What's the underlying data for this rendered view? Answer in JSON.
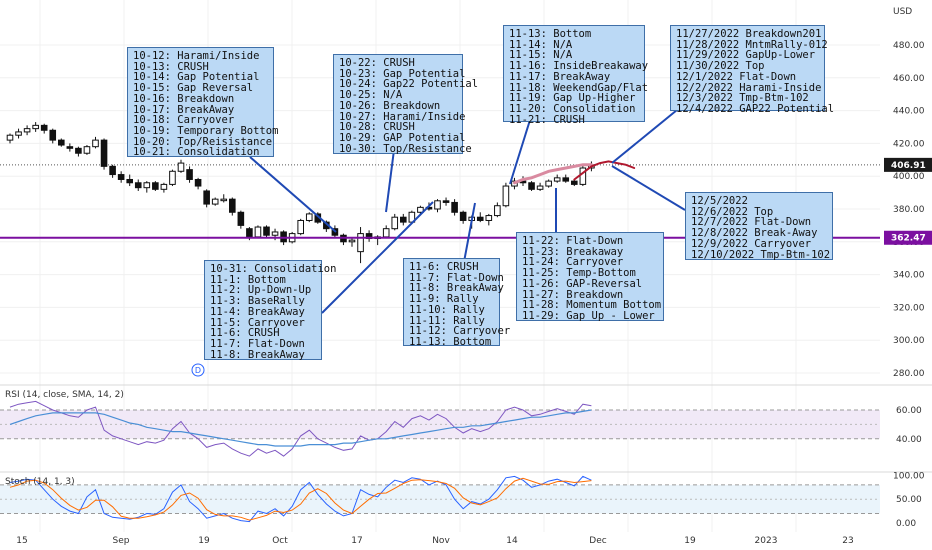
{
  "colors": {
    "candle": "#111111",
    "purple_line": "#7b0fa0",
    "callout_line": "#1f49b4",
    "callout_fill": "#bbd9f5",
    "projection": "#b0182e",
    "projection_fade": "#d98aa0",
    "rsi_line": "#7e57c2",
    "rsi_sma": "#4a8fd6",
    "stoch_k": "#2962ff",
    "stoch_d": "#ff6d00",
    "grid": "#f0f0f0"
  },
  "chart_data": {
    "type": "candlestick",
    "currency_label": "USD",
    "price_axis": {
      "ticks": [
        "480.00",
        "460.00",
        "440.00",
        "420.00",
        "400.00",
        "380.00",
        "360.00",
        "340.00",
        "320.00",
        "300.00",
        "280.00"
      ],
      "range": [
        274,
        508
      ]
    },
    "last_price_tag": "406.91",
    "support_tag": "362.47",
    "support_level": 362.47,
    "last_price": 406.91,
    "x_ticks": [
      "15",
      "Sep",
      "19",
      "Oct",
      "17",
      "Nov",
      "14",
      "Dec",
      "19",
      "2023",
      "23"
    ],
    "event_marker": "D",
    "candles": [
      [
        0,
        422,
        426,
        420,
        425
      ],
      [
        1,
        425,
        429,
        423,
        427
      ],
      [
        2,
        427,
        431,
        425,
        429
      ],
      [
        3,
        429,
        433,
        427,
        431
      ],
      [
        4,
        431,
        432,
        426,
        428
      ],
      [
        5,
        428,
        429,
        420,
        422
      ],
      [
        6,
        422,
        423,
        418,
        419
      ],
      [
        7,
        418,
        420,
        415,
        417
      ],
      [
        8,
        417,
        418,
        412,
        414
      ],
      [
        9,
        414,
        419,
        413,
        418
      ],
      [
        10,
        418,
        424,
        417,
        422
      ],
      [
        11,
        422,
        423,
        404,
        406
      ],
      [
        12,
        406,
        407,
        399,
        401
      ],
      [
        13,
        401,
        403,
        396,
        398
      ],
      [
        14,
        398,
        401,
        394,
        396
      ],
      [
        15,
        396,
        398,
        391,
        393
      ],
      [
        16,
        393,
        397,
        390,
        396
      ],
      [
        17,
        396,
        397,
        391,
        392
      ],
      [
        18,
        392,
        396,
        390,
        395
      ],
      [
        19,
        395,
        404,
        394,
        403
      ],
      [
        20,
        403,
        410,
        402,
        408
      ],
      [
        21,
        404,
        406,
        396,
        398
      ],
      [
        22,
        398,
        399,
        392,
        394
      ],
      [
        23,
        391,
        392,
        381,
        383
      ],
      [
        24,
        383,
        387,
        382,
        386
      ],
      [
        25,
        386,
        389,
        384,
        386
      ],
      [
        26,
        386,
        387,
        376,
        378
      ],
      [
        27,
        378,
        379,
        368,
        370
      ],
      [
        28,
        368,
        369,
        361,
        363
      ],
      [
        29,
        363,
        370,
        362,
        369
      ],
      [
        30,
        369,
        370,
        362,
        364
      ],
      [
        31,
        364,
        368,
        361,
        366
      ],
      [
        32,
        366,
        367,
        358,
        360
      ],
      [
        33,
        360,
        366,
        359,
        365
      ],
      [
        34,
        365,
        374,
        364,
        373
      ],
      [
        35,
        373,
        378,
        372,
        377
      ],
      [
        36,
        377,
        378,
        371,
        372
      ],
      [
        37,
        372,
        373,
        366,
        368
      ],
      [
        38,
        368,
        370,
        362,
        364
      ],
      [
        39,
        364,
        365,
        358,
        360
      ],
      [
        40,
        360,
        362,
        357,
        361
      ],
      [
        41,
        354,
        369,
        347,
        365
      ],
      [
        42,
        365,
        367,
        360,
        362
      ],
      [
        43,
        362,
        364,
        358,
        363
      ],
      [
        44,
        363,
        370,
        362,
        368
      ],
      [
        45,
        368,
        377,
        367,
        375
      ],
      [
        46,
        375,
        377,
        370,
        372
      ],
      [
        47,
        372,
        379,
        371,
        378
      ],
      [
        48,
        378,
        382,
        376,
        381
      ],
      [
        49,
        381,
        384,
        379,
        380
      ],
      [
        50,
        380,
        386,
        378,
        385
      ],
      [
        51,
        385,
        387,
        382,
        384
      ],
      [
        52,
        384,
        386,
        376,
        378
      ],
      [
        53,
        378,
        379,
        371,
        373
      ],
      [
        54,
        373,
        376,
        368,
        375
      ],
      [
        55,
        375,
        378,
        372,
        373
      ],
      [
        56,
        373,
        377,
        370,
        376
      ],
      [
        57,
        376,
        384,
        375,
        382
      ],
      [
        58,
        382,
        396,
        381,
        394
      ],
      [
        59,
        394,
        399,
        392,
        397
      ],
      [
        60,
        397,
        400,
        394,
        396
      ],
      [
        61,
        396,
        397,
        391,
        392
      ],
      [
        62,
        392,
        396,
        391,
        394
      ],
      [
        63,
        394,
        398,
        393,
        397
      ],
      [
        64,
        397,
        401,
        396,
        399
      ],
      [
        65,
        399,
        401,
        396,
        397
      ],
      [
        66,
        397,
        398,
        394,
        395
      ],
      [
        67,
        395,
        407,
        394,
        405
      ],
      [
        68,
        405,
        409,
        403,
        406.91
      ]
    ],
    "projection": [
      [
        66,
        398
      ],
      [
        67,
        402
      ],
      [
        68,
        406
      ],
      [
        69,
        408
      ],
      [
        70,
        409
      ],
      [
        71,
        408
      ],
      [
        72,
        407
      ],
      [
        73,
        405
      ]
    ],
    "projection_fade": [
      [
        59,
        396
      ],
      [
        60,
        398
      ],
      [
        61,
        399
      ],
      [
        62,
        401
      ],
      [
        63,
        403
      ],
      [
        64,
        404
      ],
      [
        65,
        405
      ],
      [
        66,
        406
      ],
      [
        67,
        407
      ],
      [
        68,
        407
      ]
    ],
    "rsi": {
      "title": "RSI (14, close, SMA, 14, 2)",
      "ticks": [
        "60.00",
        "40.00"
      ],
      "range": [
        24,
        76
      ],
      "rsi_values": [
        62,
        64,
        65,
        66,
        63,
        60,
        58,
        56,
        55,
        60,
        62,
        46,
        42,
        40,
        38,
        36,
        38,
        37,
        39,
        47,
        52,
        44,
        40,
        34,
        36,
        37,
        33,
        30,
        28,
        33,
        30,
        32,
        28,
        33,
        42,
        46,
        40,
        37,
        34,
        32,
        33,
        42,
        39,
        40,
        45,
        52,
        48,
        54,
        56,
        53,
        57,
        54,
        48,
        44,
        47,
        45,
        47,
        52,
        60,
        62,
        60,
        56,
        57,
        59,
        61,
        59,
        57,
        64,
        63
      ],
      "sma_values": [
        50,
        52,
        54,
        56,
        57,
        58,
        58,
        58,
        58,
        58,
        58,
        57,
        55,
        53,
        51,
        50,
        48,
        47,
        46,
        45,
        45,
        44,
        43,
        42,
        41,
        40,
        39,
        38,
        37,
        36,
        36,
        35,
        35,
        35,
        35,
        36,
        36,
        36,
        36,
        37,
        37,
        38,
        39,
        40,
        40,
        41,
        42,
        43,
        44,
        45,
        46,
        47,
        48,
        48,
        49,
        49,
        50,
        51,
        52,
        53,
        54,
        55,
        55,
        56,
        57,
        58,
        58,
        59,
        60
      ]
    },
    "stoch": {
      "title": "Stoch (14, 1, 3)",
      "ticks": [
        "100.00",
        "50.00",
        "0.00"
      ],
      "range": [
        -15,
        120
      ],
      "k_values": [
        85,
        88,
        92,
        90,
        70,
        50,
        35,
        25,
        20,
        55,
        70,
        20,
        12,
        10,
        8,
        12,
        20,
        18,
        30,
        65,
        80,
        45,
        30,
        10,
        15,
        20,
        10,
        5,
        3,
        25,
        20,
        30,
        15,
        35,
        70,
        85,
        60,
        40,
        25,
        15,
        20,
        70,
        60,
        55,
        75,
        90,
        85,
        95,
        92,
        80,
        88,
        80,
        50,
        30,
        45,
        40,
        50,
        70,
        95,
        98,
        90,
        75,
        80,
        88,
        92,
        85,
        78,
        98,
        90
      ],
      "d_values": [
        75,
        80,
        88,
        90,
        84,
        70,
        52,
        37,
        27,
        33,
        48,
        48,
        34,
        14,
        10,
        10,
        13,
        17,
        23,
        38,
        58,
        63,
        52,
        28,
        18,
        15,
        15,
        12,
        6,
        11,
        16,
        25,
        22,
        27,
        40,
        63,
        72,
        62,
        42,
        27,
        20,
        35,
        50,
        62,
        63,
        73,
        83,
        90,
        91,
        89,
        87,
        83,
        73,
        53,
        42,
        38,
        45,
        53,
        72,
        88,
        94,
        88,
        82,
        81,
        87,
        88,
        85,
        87,
        89
      ]
    }
  },
  "notes": {
    "box1": [
      "10-12: Harami/Inside",
      "10-13: CRUSH",
      "10-14: Gap Potential",
      "10-15: Gap Reversal",
      "10-16: Breakdown",
      "10-17: BreakAway",
      "10-18: Carryover",
      "10-19: Temporary Bottom",
      "10-20: Top/Reisistance",
      "10-21: Consolidation"
    ],
    "box2": [
      "10-22: CRUSH",
      "10-23: Gap Potential",
      "10-24: Gap22 Potential",
      "10-25: N/A",
      "10-26: Breakdown",
      "10-27: Harami/Inside",
      "10-28: CRUSH",
      "10-29: GAP Potential",
      "10-30: Top/Resistance"
    ],
    "box3": [
      "11-13: Bottom",
      "11-14: N/A",
      "11-15: N/A",
      "11-16: InsideBreakaway",
      "11-17: BreakAway",
      "11-18: WeekendGap/Flat",
      "11-19: Gap Up-Higher",
      "11-20: Consolidation",
      "11-21: CRUSH"
    ],
    "box4": [
      "11/27/2022 Breakdown201",
      "11/28/2022 MntmRally-012",
      "11/29/2022 GapUp-Lower",
      "11/30/2022 Top",
      "12/1/2022 Flat-Down",
      "12/2/2022 Harami-Inside",
      "12/3/2022 Tmp-Btm-102",
      "12/4/2022 GAP22 Potential"
    ],
    "box5": [
      "10-31: Consolidation",
      "11-1: Bottom",
      "11-2: Up-Down-Up",
      "11-3: BaseRally",
      "11-4: BreakAway",
      "11-5: Carryover",
      "11-6: CRUSH",
      "11-7: Flat-Down",
      "11-8: BreakAway"
    ],
    "box6": [
      "11-6: CRUSH",
      "11-7: Flat-Down",
      "11-8: BreakAway",
      "11-9: Rally",
      "11-10: Rally",
      "11-11: Rally",
      "11-12: Carryover",
      "11-13: Bottom"
    ],
    "box7": [
      "11-22: Flat-Down",
      "11-23: Breakaway",
      "11-24: Carryover",
      "11-25: Temp-Bottom",
      "11-26: GAP-Reversal",
      "11-27: Breakdown",
      "11-28: Momentum Bottom",
      "11-29: Gap Up - Lower"
    ],
    "box8": [
      "12/5/2022",
      "12/6/2022 Top",
      "12/7/2022 Flat-Down",
      "12/8/2022 Break-Away",
      "12/9/2022 Carryover",
      "12/10/2022 Tmp-Btm-102"
    ]
  }
}
